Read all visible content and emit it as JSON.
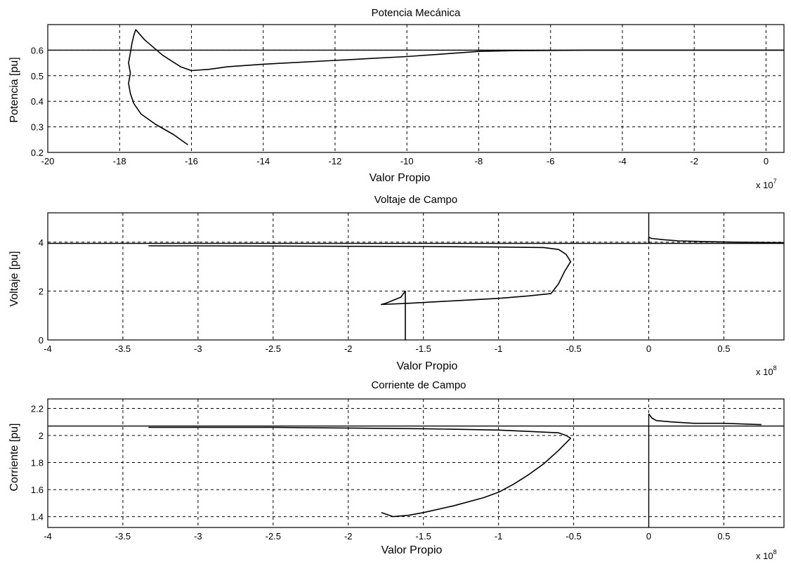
{
  "chart_data": [
    {
      "type": "line",
      "title": "Potencia Mecánica",
      "xlabel": "Valor Propio",
      "ylabel": "Potencia [pu]",
      "x_multiplier": "x 10",
      "x_exponent": "7",
      "xlim": [
        -20,
        0.5
      ],
      "ylim": [
        0.2,
        0.7
      ],
      "xticks": [
        "-20",
        "-18",
        "-16",
        "-14",
        "-12",
        "-10",
        "-8",
        "-6",
        "-4",
        "-2",
        "0"
      ],
      "yticks": [
        "0.2",
        "0.3",
        "0.4",
        "0.5",
        "0.6"
      ],
      "grid": true,
      "reference_lines": [
        {
          "axis": "y",
          "value": 0.6
        }
      ],
      "series": [
        {
          "x": [
            -16.1,
            -16.5,
            -17.0,
            -17.4,
            -17.6,
            -17.7,
            -17.75,
            -17.7,
            -17.75,
            -17.7,
            -17.65,
            -17.6,
            -17.55,
            -17.3,
            -16.8,
            -16.3,
            -16.0,
            -15.5,
            -15.0,
            -14.0,
            -12.0,
            -10.0,
            -9.0,
            -8.0,
            -7.0,
            -5.0,
            -3.0,
            -1.0,
            0.5
          ],
          "y": [
            0.23,
            0.27,
            0.31,
            0.35,
            0.39,
            0.43,
            0.47,
            0.51,
            0.55,
            0.59,
            0.63,
            0.66,
            0.68,
            0.64,
            0.58,
            0.535,
            0.52,
            0.525,
            0.535,
            0.545,
            0.56,
            0.575,
            0.585,
            0.595,
            0.598,
            0.6,
            0.6,
            0.6,
            0.6
          ]
        }
      ]
    },
    {
      "type": "line",
      "title": "Voltaje de Campo",
      "xlabel": "Valor Propio",
      "ylabel": "Voltaje [pu]",
      "x_multiplier": "x 10",
      "x_exponent": "8",
      "xlim": [
        -4,
        0.9
      ],
      "ylim": [
        0,
        5.2
      ],
      "xticks": [
        "-4",
        "-3.5",
        "-3",
        "-2.5",
        "-2",
        "-1.5",
        "-1",
        "-0.5",
        "0",
        "0.5"
      ],
      "yticks": [
        "0",
        "2",
        "4"
      ],
      "grid": true,
      "reference_lines": [
        {
          "axis": "y",
          "value": 3.95
        },
        {
          "axis": "x",
          "value": 0,
          "from": 3.95,
          "to": 5.2
        }
      ],
      "series": [
        {
          "x": [
            -1.62,
            -1.62,
            -1.65,
            -1.75,
            -1.78,
            -1.6,
            -1.3,
            -1.0,
            -0.8,
            -0.65,
            -0.6,
            -0.56,
            -0.52,
            -0.55,
            -0.6,
            -0.7,
            -1.0,
            -1.5,
            -2.0,
            -2.5,
            -3.0,
            -3.33
          ],
          "y": [
            0.0,
            2.0,
            1.75,
            1.5,
            1.45,
            1.5,
            1.6,
            1.7,
            1.8,
            1.9,
            2.3,
            2.8,
            3.2,
            3.5,
            3.7,
            3.78,
            3.8,
            3.82,
            3.83,
            3.84,
            3.85,
            3.85
          ]
        },
        {
          "x": [
            0.0,
            0.0,
            0.02,
            0.1,
            0.2,
            0.4,
            0.6,
            0.9
          ],
          "y": [
            3.95,
            4.2,
            4.15,
            4.1,
            4.05,
            4.02,
            4.0,
            3.98
          ]
        }
      ]
    },
    {
      "type": "line",
      "title": "Corriente de Campo",
      "xlabel": "Valor Propio",
      "ylabel": "Corriente [pu]",
      "x_multiplier": "x 10",
      "x_exponent": "8",
      "xlim": [
        -4,
        0.9
      ],
      "ylim": [
        1.32,
        2.27
      ],
      "xticks": [
        "-4",
        "-3.5",
        "-3",
        "-2.5",
        "-2",
        "-1.5",
        "-1",
        "-0.5",
        "0",
        "0.5"
      ],
      "yticks": [
        "1.4",
        "1.6",
        "1.8",
        "2",
        "2.2"
      ],
      "grid": true,
      "reference_lines": [
        {
          "axis": "y",
          "value": 2.07
        },
        {
          "axis": "x",
          "value": 0,
          "from": 1.32,
          "to": 2.16
        }
      ],
      "series": [
        {
          "x": [
            -1.78,
            -1.7,
            -1.6,
            -1.5,
            -1.3,
            -1.1,
            -1.0,
            -0.9,
            -0.8,
            -0.7,
            -0.6,
            -0.52,
            -0.55,
            -0.6,
            -1.0,
            -1.5,
            -2.0,
            -2.5,
            -3.0,
            -3.33
          ],
          "y": [
            1.43,
            1.4,
            1.41,
            1.43,
            1.48,
            1.54,
            1.58,
            1.64,
            1.71,
            1.79,
            1.89,
            1.98,
            2.0,
            2.02,
            2.04,
            2.05,
            2.055,
            2.06,
            2.06,
            2.06
          ]
        },
        {
          "x": [
            0.0,
            0.02,
            0.05,
            0.15,
            0.3,
            0.5,
            0.75
          ],
          "y": [
            2.16,
            2.13,
            2.11,
            2.1,
            2.09,
            2.09,
            2.08
          ]
        }
      ]
    }
  ]
}
